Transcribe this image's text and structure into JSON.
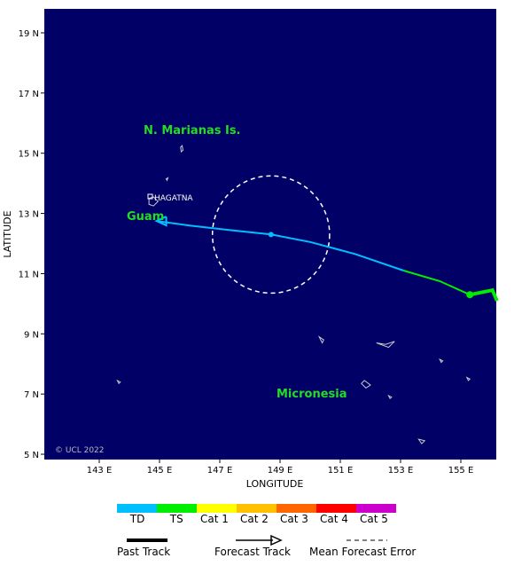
{
  "map": {
    "x_axis_title": "LONGITUDE",
    "y_axis_title": "LATITUDE",
    "lon_ticks": [
      "143 E",
      "145 E",
      "147 E",
      "149 E",
      "151 E",
      "153 E",
      "155 E"
    ],
    "lat_ticks": [
      "19 N",
      "17 N",
      "15 N",
      "13 N",
      "11 N",
      "9 N",
      "7 N",
      "5 N"
    ],
    "regions": {
      "marianas": "N. Marianas Is.",
      "guam": "Guam",
      "micronesia": "Micronesia"
    },
    "city": "HAGATNA",
    "copyright": "© UCL 2022",
    "ocean_color": "#000066"
  },
  "legend": {
    "categories": [
      {
        "label": "TD",
        "color": "#00bfff"
      },
      {
        "label": "TS",
        "color": "#00ee00"
      },
      {
        "label": "Cat 1",
        "color": "#ffff00"
      },
      {
        "label": "Cat 2",
        "color": "#ffc000"
      },
      {
        "label": "Cat 3",
        "color": "#ff6600"
      },
      {
        "label": "Cat 4",
        "color": "#ff0000"
      },
      {
        "label": "Cat 5",
        "color": "#cc00cc"
      }
    ],
    "past_track": "Past Track",
    "forecast_track": "Forecast Track",
    "mean_error": "Mean Forecast Error"
  },
  "storm": {
    "past_track_ts": [
      [
        156.2,
        10.1
      ],
      [
        156.05,
        10.45
      ],
      [
        155.3,
        10.3
      ]
    ],
    "forecast_ts": [
      [
        155.3,
        10.3
      ],
      [
        154.3,
        10.75
      ],
      [
        153.1,
        11.1
      ]
    ],
    "forecast_td": [
      [
        153.1,
        11.1
      ],
      [
        151.5,
        11.65
      ],
      [
        150.0,
        12.05
      ],
      [
        148.7,
        12.3
      ],
      [
        147.3,
        12.45
      ],
      [
        146.0,
        12.6
      ],
      [
        144.9,
        12.75
      ]
    ],
    "current_position": [
      155.3,
      10.3
    ],
    "forecast_point": [
      148.7,
      12.3
    ],
    "error_circle_center": [
      148.7,
      12.3
    ],
    "error_circle_radius_deg": 1.95
  }
}
